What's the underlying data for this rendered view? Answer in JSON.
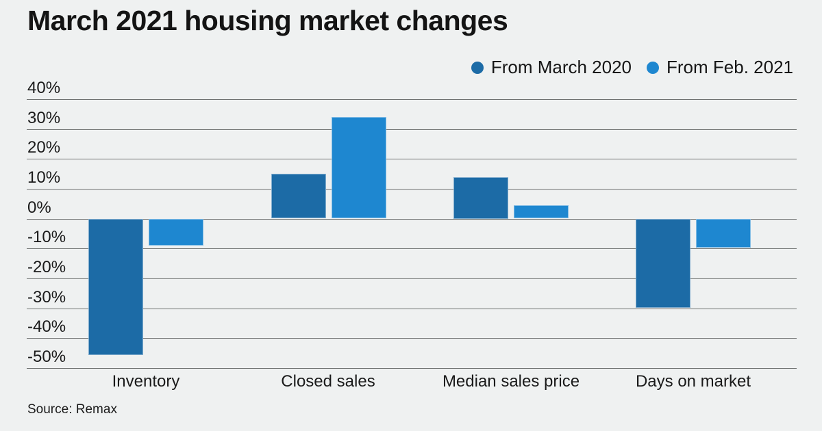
{
  "title": "March 2021 housing market changes",
  "source": "Source: Remax",
  "colors": {
    "background": "#eff1f1",
    "grid": "#6e7170",
    "text": "#1a1a1a",
    "series_from_march_2020": "#1c6ba6",
    "series_from_feb_2021": "#1e87d0"
  },
  "chart_data": {
    "type": "bar",
    "title": "March 2021 housing market changes",
    "categories": [
      "Inventory",
      "Closed sales",
      "Median sales price",
      "Days on market"
    ],
    "series": [
      {
        "name": "From March 2020",
        "color": "#1c6ba6",
        "values": [
          -45.5,
          15,
          14,
          -29.7
        ]
      },
      {
        "name": "From Feb. 2021",
        "color": "#1e87d0",
        "values": [
          -9,
          34,
          4.4,
          -9.6
        ]
      }
    ],
    "xlabel": "",
    "ylabel": "",
    "ylim": [
      -50,
      40
    ],
    "ytick_step": 10,
    "ytick_suffix": "%",
    "grid": true,
    "legend_position": "top-right",
    "source": "Source: Remax"
  }
}
